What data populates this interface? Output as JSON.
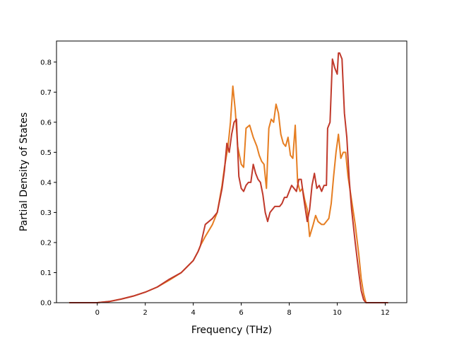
{
  "chart_data": {
    "type": "line",
    "title": "",
    "xlabel": "Frequency (THz)",
    "ylabel": "Partial Density of States",
    "xlim": [
      -1.7,
      12.9
    ],
    "ylim": [
      0.0,
      0.87
    ],
    "xticks": [
      0,
      2,
      4,
      6,
      8,
      10,
      12
    ],
    "yticks": [
      0.0,
      0.1,
      0.2,
      0.3,
      0.4,
      0.5,
      0.6,
      0.7,
      0.8
    ],
    "grid": false,
    "legend": "none",
    "series": [
      {
        "color": "#e67e22",
        "x": [
          -1.15,
          0.0,
          0.5,
          1.0,
          1.5,
          2.0,
          2.5,
          3.0,
          3.5,
          4.0,
          4.2,
          4.3,
          4.5,
          4.8,
          5.0,
          5.2,
          5.3,
          5.45,
          5.55,
          5.65,
          5.75,
          5.85,
          6.0,
          6.1,
          6.2,
          6.35,
          6.5,
          6.65,
          6.75,
          6.85,
          6.95,
          7.05,
          7.15,
          7.25,
          7.35,
          7.45,
          7.55,
          7.65,
          7.75,
          7.85,
          7.95,
          8.05,
          8.15,
          8.25,
          8.35,
          8.45,
          8.55,
          8.65,
          8.75,
          8.85,
          9.0,
          9.1,
          9.2,
          9.35,
          9.45,
          9.55,
          9.65,
          9.75,
          9.85,
          9.95,
          10.05,
          10.15,
          10.25,
          10.35,
          10.45,
          10.6,
          10.75,
          10.9,
          11.0,
          11.1,
          11.2,
          12.1
        ],
        "y": [
          0.0,
          0.0,
          0.004,
          0.012,
          0.022,
          0.035,
          0.052,
          0.075,
          0.1,
          0.14,
          0.17,
          0.19,
          0.22,
          0.26,
          0.3,
          0.39,
          0.45,
          0.52,
          0.6,
          0.72,
          0.64,
          0.52,
          0.46,
          0.45,
          0.58,
          0.59,
          0.55,
          0.52,
          0.49,
          0.47,
          0.46,
          0.38,
          0.58,
          0.61,
          0.6,
          0.66,
          0.63,
          0.56,
          0.53,
          0.52,
          0.55,
          0.49,
          0.48,
          0.59,
          0.4,
          0.37,
          0.38,
          0.34,
          0.31,
          0.22,
          0.26,
          0.29,
          0.27,
          0.26,
          0.26,
          0.27,
          0.28,
          0.33,
          0.42,
          0.5,
          0.56,
          0.48,
          0.5,
          0.5,
          0.42,
          0.34,
          0.26,
          0.16,
          0.08,
          0.03,
          0.0,
          0.0
        ]
      },
      {
        "color": "#c0392b",
        "x": [
          -1.15,
          0.0,
          0.5,
          1.0,
          1.5,
          2.0,
          2.5,
          3.0,
          3.5,
          4.0,
          4.2,
          4.3,
          4.5,
          4.8,
          5.0,
          5.2,
          5.3,
          5.4,
          5.5,
          5.6,
          5.7,
          5.8,
          5.9,
          6.0,
          6.1,
          6.2,
          6.3,
          6.4,
          6.5,
          6.6,
          6.7,
          6.8,
          6.9,
          7.0,
          7.1,
          7.2,
          7.3,
          7.4,
          7.5,
          7.6,
          7.7,
          7.8,
          7.9,
          8.0,
          8.1,
          8.2,
          8.3,
          8.4,
          8.5,
          8.6,
          8.75,
          8.85,
          8.95,
          9.05,
          9.15,
          9.25,
          9.35,
          9.45,
          9.55,
          9.6,
          9.7,
          9.8,
          9.9,
          10.0,
          10.05,
          10.1,
          10.2,
          10.3,
          10.4,
          10.5,
          10.6,
          10.75,
          10.9,
          11.0,
          11.1,
          11.2,
          12.1
        ],
        "y": [
          0.0,
          0.0,
          0.004,
          0.012,
          0.022,
          0.035,
          0.052,
          0.078,
          0.1,
          0.14,
          0.17,
          0.19,
          0.26,
          0.28,
          0.3,
          0.38,
          0.44,
          0.53,
          0.5,
          0.56,
          0.6,
          0.61,
          0.42,
          0.38,
          0.37,
          0.39,
          0.4,
          0.4,
          0.46,
          0.43,
          0.41,
          0.4,
          0.36,
          0.3,
          0.27,
          0.3,
          0.31,
          0.32,
          0.32,
          0.32,
          0.33,
          0.35,
          0.35,
          0.37,
          0.39,
          0.38,
          0.37,
          0.41,
          0.41,
          0.35,
          0.27,
          0.31,
          0.39,
          0.43,
          0.38,
          0.39,
          0.37,
          0.39,
          0.39,
          0.58,
          0.6,
          0.81,
          0.78,
          0.76,
          0.83,
          0.83,
          0.81,
          0.63,
          0.55,
          0.41,
          0.31,
          0.2,
          0.1,
          0.04,
          0.01,
          0.0,
          0.0
        ]
      }
    ]
  }
}
